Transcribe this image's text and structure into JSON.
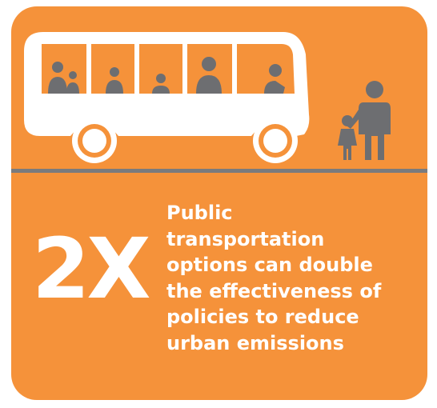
{
  "stat": "2X",
  "message_lines": [
    "Public",
    "transportation",
    "options can double",
    "the effectiveness of",
    "policies to reduce",
    "urban emissions"
  ]
}
